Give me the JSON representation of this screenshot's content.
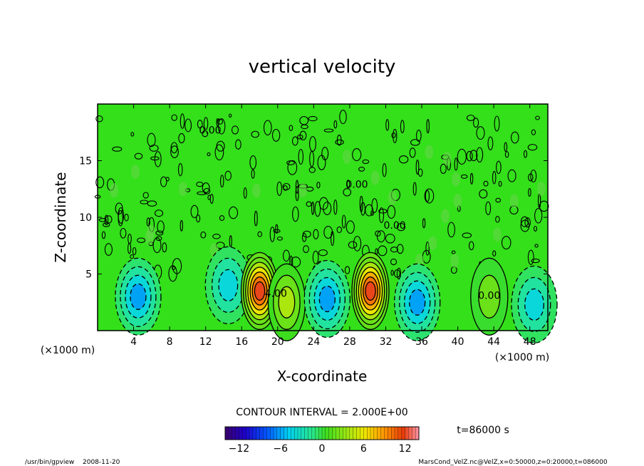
{
  "chart_data": {
    "type": "heatmap",
    "title": "vertical velocity",
    "xlabel": "X-coordinate",
    "ylabel": "Z-coordinate",
    "x_unit": "(×1000 m)",
    "y_unit": "(×1000 m)",
    "xlim": [
      0,
      50
    ],
    "ylim": [
      0,
      20
    ],
    "x_ticks": [
      "4",
      "8",
      "12",
      "16",
      "20",
      "24",
      "28",
      "32",
      "36",
      "40",
      "44",
      "48"
    ],
    "y_ticks": [
      "5",
      "10",
      "15"
    ],
    "contour_labels": [
      "0.00",
      "0.00",
      "0.00",
      "4.00",
      "0.00"
    ],
    "contour_interval": "CONTOUR INTERVAL = 2.000E+00",
    "time_label": "t=86000 s",
    "colorbar": {
      "range": [
        -14,
        14
      ],
      "ticks": [
        "−12",
        "−6",
        "0",
        "6",
        "12"
      ]
    },
    "features": [
      {
        "x": 4.5,
        "z": 3.0,
        "w": -6
      },
      {
        "x": 14.5,
        "z": 4.0,
        "w": -4
      },
      {
        "x": 18.0,
        "z": 3.5,
        "w": 12
      },
      {
        "x": 21.0,
        "z": 2.5,
        "w": 4
      },
      {
        "x": 25.5,
        "z": 2.8,
        "w": -6
      },
      {
        "x": 30.3,
        "z": 3.5,
        "w": 12
      },
      {
        "x": 35.5,
        "z": 2.5,
        "w": -6
      },
      {
        "x": 43.5,
        "z": 3.0,
        "w": 2
      },
      {
        "x": 48.5,
        "z": 2.3,
        "w": -4
      }
    ]
  },
  "footer": {
    "program": "/usr/bin/gpview",
    "date": "2008-11-20",
    "source": "MarsCond_VelZ.nc@VelZ,x=0:50000,z=0:20000,t=086000"
  },
  "colors": {
    "background_field": "#33e01a",
    "contour": "#000000"
  }
}
